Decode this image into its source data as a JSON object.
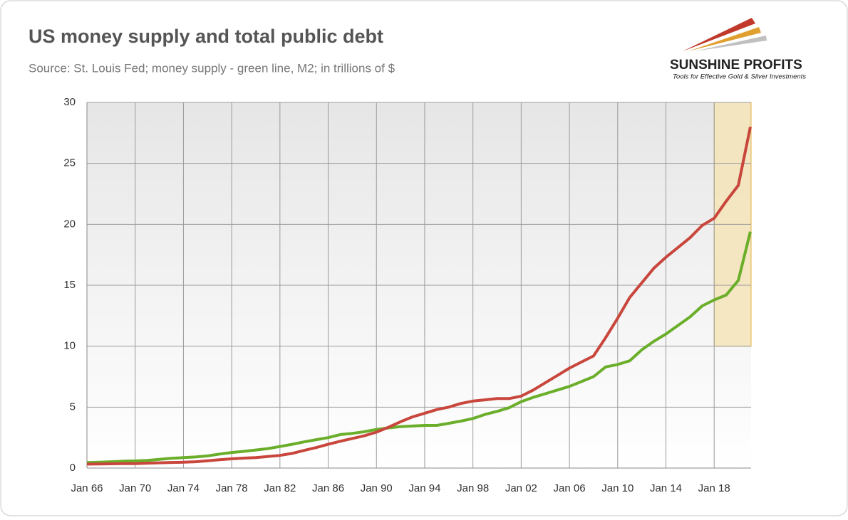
{
  "chart_data": {
    "type": "line",
    "title": "US money supply and total public debt",
    "subtitle": "Source: St. Louis Fed; money supply - green line, M2; in trillions of $",
    "categories": [
      "Jan 66",
      null,
      null,
      null,
      "Jan 70",
      null,
      null,
      null,
      "Jan 74",
      null,
      null,
      null,
      "Jan 78",
      null,
      null,
      null,
      "Jan 82",
      null,
      null,
      null,
      "Jan 86",
      null,
      null,
      null,
      "Jan 90",
      null,
      null,
      null,
      "Jan 94",
      null,
      null,
      null,
      "Jan 98",
      null,
      null,
      null,
      "Jan 02",
      null,
      null,
      null,
      "Jan 06",
      null,
      null,
      null,
      "Jan 10",
      null,
      null,
      null,
      "Jan 14",
      null,
      null,
      null,
      "Jan 18",
      null,
      null,
      null
    ],
    "series": [
      {
        "color": "#6aae2a",
        "values": [
          0.45,
          0.48,
          0.52,
          0.57,
          0.59,
          0.63,
          0.71,
          0.8,
          0.86,
          0.91,
          1.0,
          1.15,
          1.28,
          1.37,
          1.48,
          1.6,
          1.77,
          1.95,
          2.15,
          2.33,
          2.5,
          2.75,
          2.85,
          2.98,
          3.17,
          3.3,
          3.4,
          3.45,
          3.5,
          3.5,
          3.67,
          3.85,
          4.07,
          4.4,
          4.65,
          4.95,
          5.45,
          5.8,
          6.1,
          6.4,
          6.7,
          7.1,
          7.5,
          8.3,
          8.5,
          8.8,
          9.7,
          10.4,
          11.0,
          11.7,
          12.4,
          13.3,
          13.8,
          14.2,
          15.4,
          19.4
        ]
      },
      {
        "color": "#c8463c",
        "values": [
          0.32,
          0.34,
          0.35,
          0.36,
          0.37,
          0.4,
          0.43,
          0.46,
          0.48,
          0.52,
          0.6,
          0.68,
          0.76,
          0.82,
          0.86,
          0.95,
          1.04,
          1.2,
          1.45,
          1.68,
          1.95,
          2.2,
          2.43,
          2.65,
          2.95,
          3.35,
          3.8,
          4.2,
          4.5,
          4.8,
          5.0,
          5.3,
          5.5,
          5.6,
          5.7,
          5.7,
          5.9,
          6.4,
          7.0,
          7.6,
          8.2,
          8.7,
          9.2,
          10.7,
          12.3,
          14.0,
          15.2,
          16.4,
          17.3,
          18.1,
          18.9,
          19.9,
          20.5,
          21.9,
          23.2,
          28.0
        ]
      }
    ],
    "ylim": [
      0,
      30
    ],
    "yticks": [
      0,
      5,
      10,
      15,
      20,
      25,
      30
    ],
    "grid": true,
    "highlight": {
      "start": "Jan 18",
      "y": [
        10,
        30
      ],
      "color": "#f5e4b8"
    }
  },
  "logo": {
    "name": "SUNSHINE PROFITS",
    "tagline": "Tools for Effective Gold & Silver Investments"
  }
}
